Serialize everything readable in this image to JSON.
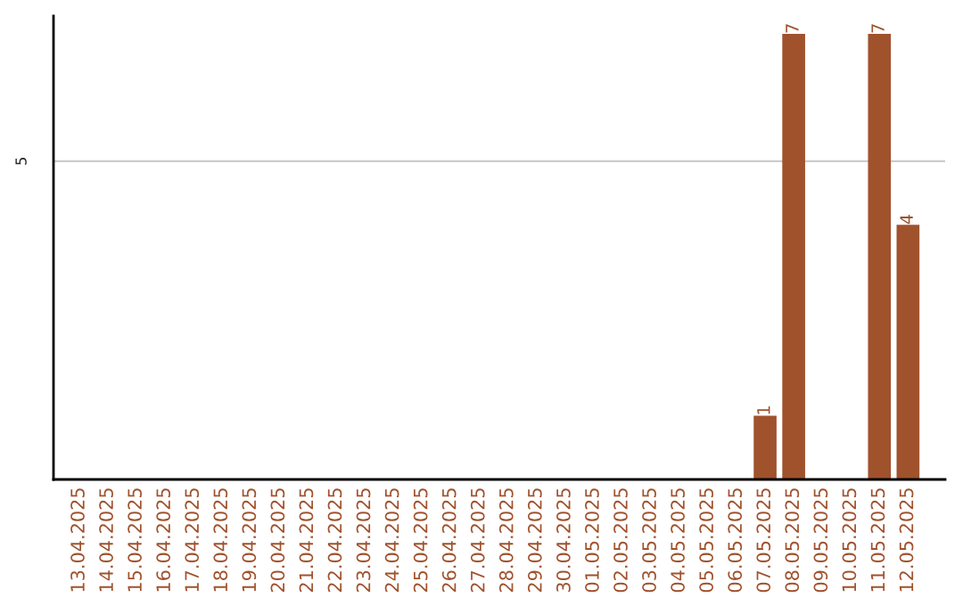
{
  "chart_data": {
    "type": "bar",
    "categories": [
      "13.04.2025",
      "14.04.2025",
      "15.04.2025",
      "16.04.2025",
      "17.04.2025",
      "18.04.2025",
      "19.04.2025",
      "20.04.2025",
      "21.04.2025",
      "22.04.2025",
      "23.04.2025",
      "24.04.2025",
      "25.04.2025",
      "26.04.2025",
      "27.04.2025",
      "28.04.2025",
      "29.04.2025",
      "30.04.2025",
      "01.05.2025",
      "02.05.2025",
      "03.05.2025",
      "04.05.2025",
      "05.05.2025",
      "06.05.2025",
      "07.05.2025",
      "08.05.2025",
      "09.05.2025",
      "10.05.2025",
      "11.05.2025",
      "12.05.2025"
    ],
    "values": [
      null,
      null,
      null,
      null,
      null,
      null,
      null,
      null,
      null,
      null,
      null,
      null,
      null,
      null,
      null,
      null,
      null,
      null,
      null,
      null,
      null,
      null,
      null,
      null,
      1,
      7,
      null,
      null,
      7,
      4
    ],
    "value_labels": [
      null,
      null,
      null,
      null,
      null,
      null,
      null,
      null,
      null,
      null,
      null,
      null,
      null,
      null,
      null,
      null,
      null,
      null,
      null,
      null,
      null,
      null,
      null,
      null,
      "1",
      "7",
      null,
      null,
      "7",
      "4"
    ],
    "color": "#a0522d",
    "ref_lines": [
      {
        "axis": "y",
        "value": 5,
        "label": "5",
        "color": "#cccccc"
      }
    ],
    "legend": false
  }
}
